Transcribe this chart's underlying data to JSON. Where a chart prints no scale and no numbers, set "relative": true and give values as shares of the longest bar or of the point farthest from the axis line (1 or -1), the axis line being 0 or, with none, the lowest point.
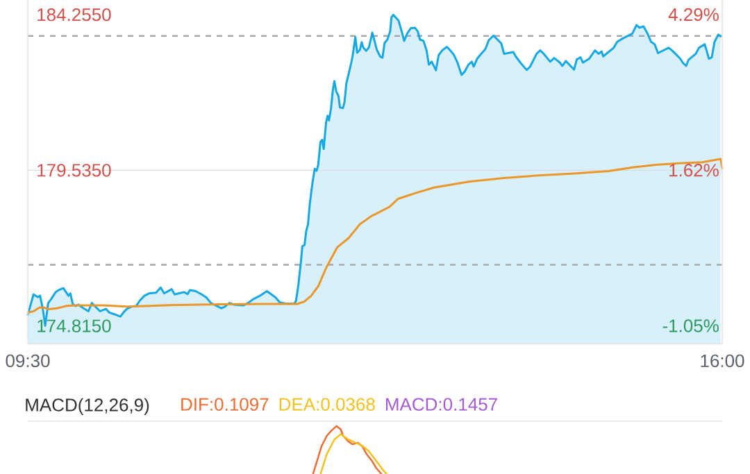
{
  "chart_data": [
    {
      "type": "line",
      "xlim": [
        9.5,
        16
      ],
      "xticks": [
        {
          "value": 9.5,
          "label": "09:30"
        },
        {
          "value": 16,
          "label": "16:00"
        }
      ],
      "ylim": [
        174.27,
        184.7
      ],
      "yticks": [
        {
          "value": 184.255,
          "label": "184.2550"
        },
        {
          "value": 179.535,
          "label": "179.5350"
        },
        {
          "value": 174.815,
          "label": "174.8150"
        }
      ],
      "y2lim": [
        -1.36,
        4.54
      ],
      "y2ticks": [
        {
          "value": 4.29,
          "label": "4.29%"
        },
        {
          "value": 1.62,
          "label": "1.62%"
        },
        {
          "value": -1.05,
          "label": "-1.05%"
        }
      ],
      "ref_lines": [
        {
          "axis": "y",
          "value": 183.61,
          "color": "#a8a8a8",
          "line_style": "dashed"
        },
        {
          "axis": "y",
          "value": 179.535,
          "color": "#dcdcdc",
          "line_style": "solid"
        },
        {
          "axis": "y",
          "value": 176.67,
          "color": "#a8a8a8",
          "line_style": "dashed"
        }
      ],
      "series": [
        {
          "type": "area",
          "color": "#16a8e3",
          "x": [
            9.5,
            9.554,
            9.593,
            9.615,
            9.641,
            9.663,
            9.691,
            9.717,
            9.761,
            9.794,
            9.833,
            9.881,
            9.899,
            9.921,
            9.947,
            9.973,
            10.013,
            10.067,
            10.1,
            10.133,
            10.177,
            10.231,
            10.264,
            10.318,
            10.367,
            10.395,
            10.427,
            10.471,
            10.515,
            10.548,
            10.592,
            10.635,
            10.701,
            10.744,
            10.777,
            10.847,
            10.875,
            10.963,
            10.996,
            11.017,
            11.072,
            11.127,
            11.171,
            11.214,
            11.312,
            11.345,
            11.388,
            11.432,
            11.52,
            11.563,
            11.607,
            11.673,
            11.738,
            11.815,
            11.859,
            11.913,
            11.996,
            12.011,
            12.033,
            12.055,
            12.07,
            12.091,
            12.106,
            12.123,
            12.14,
            12.165,
            12.186,
            12.203,
            12.218,
            12.239,
            12.256,
            12.27,
            12.292,
            12.306,
            12.319,
            12.338,
            12.355,
            12.37,
            12.387,
            12.408,
            12.422,
            12.45,
            12.465,
            12.482,
            12.503,
            12.528,
            12.541,
            12.566,
            12.583,
            12.609,
            12.625,
            12.64,
            12.668,
            12.693,
            12.725,
            12.739,
            12.767,
            12.799,
            12.82,
            12.84,
            12.866,
            12.892,
            12.904,
            12.921,
            12.97,
            12.996,
            13.023,
            13.051,
            13.084,
            13.123,
            13.15,
            13.171,
            13.204,
            13.233,
            13.254,
            13.281,
            13.32,
            13.346,
            13.379,
            13.423,
            13.455,
            13.488,
            13.521,
            13.56,
            13.59,
            13.625,
            13.656,
            13.674,
            13.706,
            13.75,
            13.783,
            13.815,
            13.859,
            13.896,
            13.931,
            13.958,
            14.045,
            14.067,
            14.111,
            14.15,
            14.171,
            14.202,
            14.263,
            14.296,
            14.329,
            14.39,
            14.427,
            14.482,
            14.504,
            14.536,
            14.613,
            14.639,
            14.674,
            14.696,
            14.755,
            14.809,
            14.842,
            14.871,
            14.886,
            14.984,
            15.017,
            15.072,
            15.159,
            15.198,
            15.225,
            15.264,
            15.301,
            15.334,
            15.367,
            15.399,
            15.498,
            15.53,
            15.574,
            15.607,
            15.635,
            15.662,
            15.684,
            15.753,
            15.782,
            15.836,
            15.876,
            15.902,
            15.928,
            15.963,
            15.985
          ],
          "values": [
            175.15,
            175.77,
            175.69,
            175.73,
            175.33,
            174.82,
            175.51,
            175.62,
            175.84,
            175.91,
            175.96,
            175.73,
            175.8,
            175.48,
            175.42,
            175.46,
            175.37,
            175.26,
            175.51,
            175.4,
            175.26,
            175.33,
            175.22,
            175.16,
            175.1,
            175.22,
            175.33,
            175.4,
            175.42,
            175.58,
            175.73,
            175.8,
            175.82,
            175.98,
            175.8,
            175.93,
            175.77,
            175.84,
            175.78,
            175.9,
            175.87,
            175.77,
            175.68,
            175.51,
            175.35,
            175.4,
            175.51,
            175.46,
            175.44,
            175.51,
            175.62,
            175.73,
            175.87,
            175.69,
            175.53,
            175.49,
            175.49,
            175.58,
            176.06,
            176.71,
            177.23,
            177.27,
            177.69,
            177.9,
            178.53,
            179.16,
            179.58,
            179.52,
            179.69,
            180.39,
            180.46,
            180.18,
            180.98,
            181.19,
            181.05,
            181.4,
            181.96,
            182.24,
            181.93,
            181.79,
            181.44,
            181.42,
            181.61,
            182.17,
            182.45,
            182.8,
            183.01,
            183.58,
            183.1,
            183.19,
            183.42,
            183.26,
            183.16,
            183.26,
            183.71,
            183.54,
            183.19,
            182.98,
            182.95,
            183.4,
            183.5,
            183.75,
            184.17,
            184.25,
            184.08,
            183.79,
            183.46,
            183.68,
            183.84,
            183.86,
            183.75,
            183.5,
            183.46,
            183.17,
            182.74,
            182.83,
            182.57,
            183.03,
            183.17,
            183.28,
            183.17,
            183.04,
            182.81,
            182.43,
            182.53,
            182.74,
            182.83,
            182.68,
            182.92,
            183.09,
            183.21,
            183.48,
            183.62,
            183.5,
            183.39,
            183.07,
            183.12,
            182.99,
            182.8,
            182.65,
            182.58,
            182.68,
            183.07,
            183.17,
            183.07,
            182.83,
            182.94,
            182.8,
            182.7,
            182.85,
            182.59,
            182.9,
            182.96,
            182.8,
            182.92,
            183.17,
            183.07,
            183.14,
            182.99,
            183.25,
            183.43,
            183.54,
            183.68,
            183.94,
            183.86,
            183.9,
            183.68,
            183.43,
            183.36,
            183.09,
            183.25,
            183.17,
            183.03,
            182.92,
            182.78,
            182.7,
            182.88,
            183.07,
            183.25,
            183.36,
            182.92,
            182.96,
            183.43,
            183.65,
            183.6
          ]
        },
        {
          "type": "line",
          "color": "#ec962a",
          "x": [
            9.5,
            9.554,
            9.608,
            9.652,
            9.696,
            9.772,
            9.86,
            9.947,
            10.209,
            10.427,
            10.646,
            10.865,
            11.301,
            11.738,
            12.022,
            12.088,
            12.153,
            12.219,
            12.292,
            12.397,
            12.503,
            12.609,
            12.714,
            12.883,
            12.967,
            13.06,
            13.136,
            13.302,
            13.63,
            13.958,
            14.285,
            14.613,
            14.94,
            15.159,
            15.378,
            15.596,
            15.815,
            15.985,
            16
          ],
          "values": [
            175.22,
            175.26,
            175.37,
            175.37,
            175.32,
            175.35,
            175.42,
            175.44,
            175.44,
            175.4,
            175.42,
            175.45,
            175.47,
            175.48,
            175.48,
            175.55,
            175.73,
            176.02,
            176.57,
            177.2,
            177.48,
            177.9,
            178.14,
            178.42,
            178.67,
            178.77,
            178.85,
            179.01,
            179.19,
            179.3,
            179.38,
            179.44,
            179.51,
            179.62,
            179.7,
            179.75,
            179.78,
            179.88,
            179.59
          ]
        }
      ]
    },
    {
      "type": "line",
      "title": "MACD(12,26,9)",
      "relative": true,
      "xlim": [
        9.5,
        16
      ],
      "tick_labels": false,
      "legend": "top left",
      "series": [
        {
          "name": "DIF:0.1097",
          "color": "#f06b32",
          "x": [
            12.17,
            12.25,
            12.3,
            12.34,
            12.39,
            12.43,
            12.45,
            12.5,
            12.54,
            12.59,
            12.63,
            12.67,
            12.72,
            12.76,
            12.81
          ],
          "values": [
            0,
            0.58,
            0.8,
            0.9,
            1,
            0.93,
            0.8,
            0.68,
            0.62,
            0.65,
            0.58,
            0.42,
            0.28,
            0.13,
            0
          ]
        },
        {
          "name": "DEA:0.0368",
          "color": "#f2c11c",
          "x": [
            12.24,
            12.3,
            12.37,
            12.43,
            12.5,
            12.57,
            12.63,
            12.69,
            12.76,
            12.83,
            12.86
          ],
          "values": [
            0,
            0.42,
            0.72,
            0.83,
            0.72,
            0.65,
            0.59,
            0.48,
            0.28,
            0.07,
            0
          ]
        },
        {
          "name": "MACD:0.1457",
          "color": "#a65ad6"
        }
      ]
    }
  ]
}
